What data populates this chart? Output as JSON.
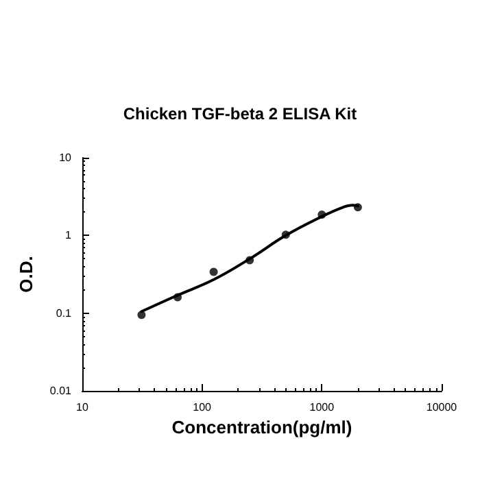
{
  "chart_data": {
    "type": "scatter",
    "title": "Chicken TGF-beta 2 ELISA Kit",
    "xlabel": "Concentration(pg/ml)",
    "ylabel": "O.D.",
    "log": "xy",
    "grid": false,
    "marker": "circle",
    "xlim": [
      10,
      10000
    ],
    "xticks": [
      10,
      100,
      1000,
      10000
    ],
    "ylim": [
      0.01,
      10
    ],
    "yticks": [
      0.01,
      0.1,
      1,
      10
    ],
    "series": [
      {
        "color": "#000000",
        "x": [
          31.25,
          62.5,
          125,
          250,
          500,
          1000,
          2000
        ],
        "values": [
          0.095,
          0.16,
          0.34,
          0.48,
          1.02,
          1.85,
          2.3
        ]
      },
      {
        "type": "line",
        "color": "#000000",
        "marker": "none",
        "line_style": "solid",
        "x": [
          31.25,
          62.5,
          125,
          250,
          500,
          1000,
          1500,
          1800,
          2000
        ],
        "values": [
          0.105,
          0.17,
          0.27,
          0.5,
          1.0,
          1.75,
          2.3,
          2.45,
          2.4
        ]
      }
    ]
  }
}
